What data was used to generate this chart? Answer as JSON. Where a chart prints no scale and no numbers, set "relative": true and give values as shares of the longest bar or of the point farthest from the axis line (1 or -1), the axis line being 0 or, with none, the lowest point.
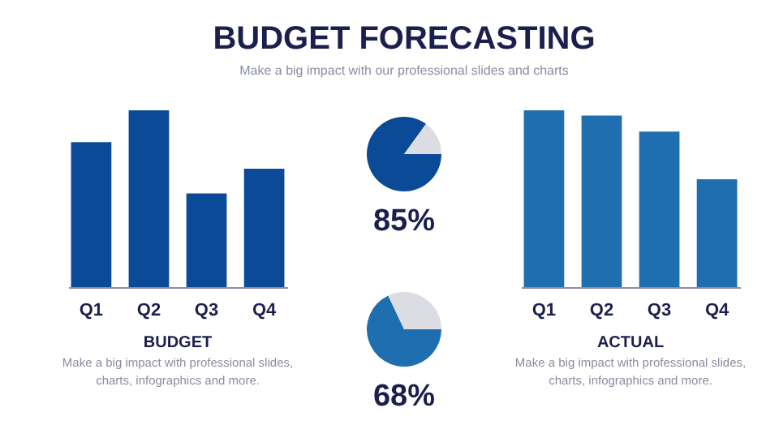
{
  "chart_data": [
    {
      "type": "bar",
      "title": "BUDGET FORECASTING",
      "subtitle": "Make a big impact with our professional slides and charts",
      "xlabel": "BUDGET",
      "annotations": [
        "Make a big impact with professional slides, charts, infographics and more."
      ],
      "categories": [
        "Q1",
        "Q2",
        "Q3",
        "Q4"
      ],
      "values": [
        0.82,
        1,
        0.53,
        0.67
      ],
      "color": "#0b4a96",
      "relative": true,
      "grid": false,
      "legend": false
    },
    {
      "type": "pie",
      "categories": [
        null,
        null
      ],
      "values": [
        85,
        15
      ],
      "colors": [
        "#0b4a96",
        "#dcdde3"
      ],
      "value_labels": [
        "85%",
        null
      ],
      "legend": false
    },
    {
      "type": "pie",
      "categories": [
        null,
        null
      ],
      "values": [
        68,
        32
      ],
      "colors": [
        "#1f6fb0",
        "#dcdde3"
      ],
      "value_labels": [
        "68%",
        null
      ],
      "legend": false
    },
    {
      "type": "bar",
      "xlabel": "ACTUAL",
      "annotations": [
        "Make a big impact with professional slides, charts, infographics and more."
      ],
      "categories": [
        "Q1",
        "Q2",
        "Q3",
        "Q4"
      ],
      "values": [
        1,
        0.97,
        0.88,
        0.61
      ],
      "color": "#1f6fb0",
      "relative": true,
      "grid": false,
      "legend": false
    }
  ]
}
